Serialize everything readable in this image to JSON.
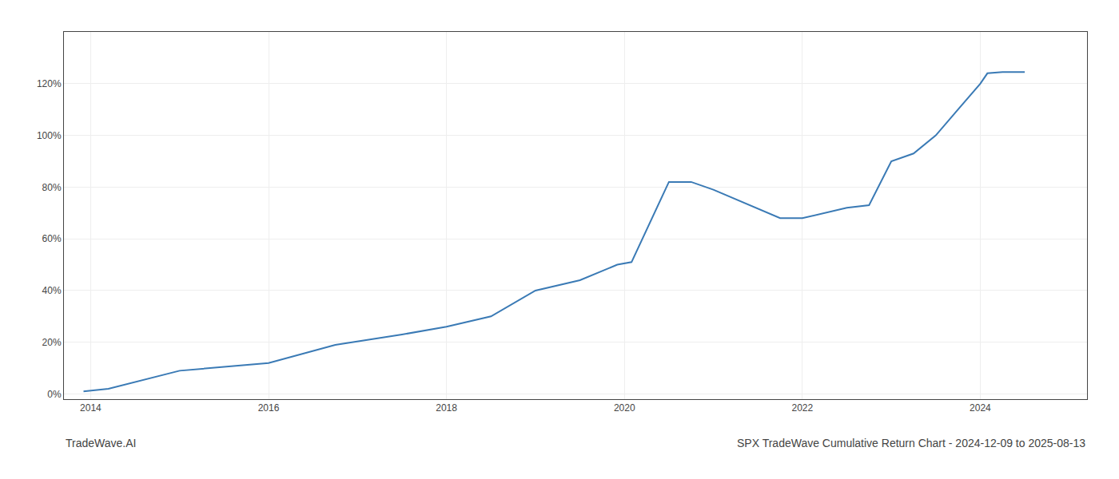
{
  "chart_data": {
    "type": "line",
    "title": "SPX TradeWave Cumulative Return Chart - 2024-12-09 to 2025-08-13",
    "annotations": [
      "TradeWave.AI"
    ],
    "color": "#3a7ab5",
    "grid": true,
    "x": [
      2013.92,
      2014.2,
      2015.0,
      2016.0,
      2016.75,
      2017.5,
      2018.0,
      2018.5,
      2019.0,
      2019.5,
      2019.92,
      2020.08,
      2020.5,
      2020.75,
      2021.0,
      2021.75,
      2022.0,
      2022.5,
      2022.75,
      2023.0,
      2023.25,
      2023.5,
      2023.75,
      2024.0,
      2024.08,
      2024.25,
      2024.5
    ],
    "values": [
      0.01,
      0.02,
      0.09,
      0.12,
      0.19,
      0.23,
      0.26,
      0.3,
      0.4,
      0.44,
      0.5,
      0.51,
      0.82,
      0.82,
      0.79,
      0.68,
      0.68,
      0.72,
      0.73,
      0.9,
      0.93,
      1.0,
      1.1,
      1.2,
      1.24,
      1.245,
      1.245
    ],
    "xlim": [
      2013.7,
      2025.2
    ],
    "ylim": [
      -0.02,
      1.4
    ],
    "xticks": [
      2014,
      2016,
      2018,
      2020,
      2022,
      2024
    ],
    "yticks": [
      {
        "value": 0.0,
        "label": "0%"
      },
      {
        "value": 0.2,
        "label": "20%"
      },
      {
        "value": 0.4,
        "label": "40%"
      },
      {
        "value": 0.6,
        "label": "60%"
      },
      {
        "value": 0.8,
        "label": "80%"
      },
      {
        "value": 1.0,
        "label": "100%"
      },
      {
        "value": 1.2,
        "label": "120%"
      }
    ]
  }
}
